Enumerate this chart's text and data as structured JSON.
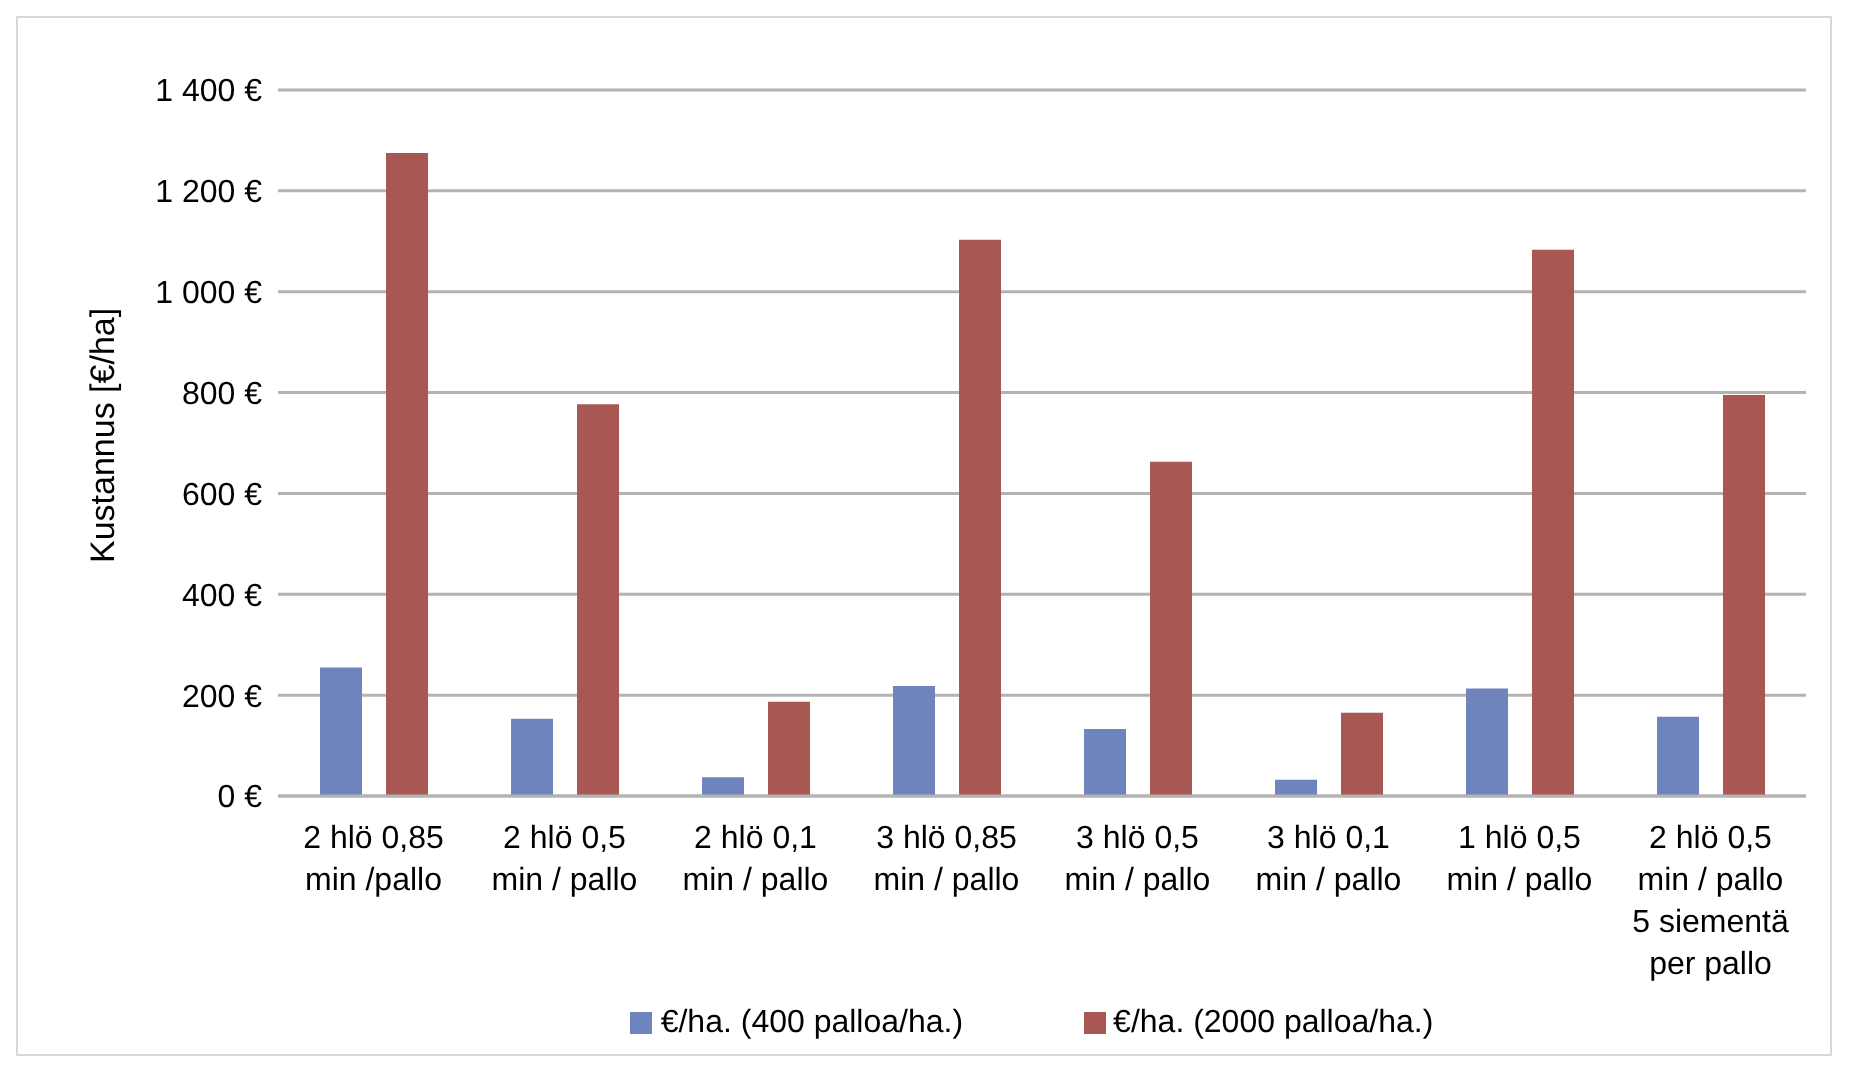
{
  "chart_data": {
    "type": "bar",
    "ylabel": "Kustannus [€/ha]",
    "categories": [
      "2 hlö 0,85 min /pallo",
      "2 hlö 0,5 min / pallo",
      "2 hlö 0,1 min / pallo",
      "3 hlö 0,85 min / pallo",
      "3 hlö 0,5 min / pallo",
      "3 hlö 0,1 min / pallo",
      "1 hlö 0,5 min / pallo",
      "2 hlö 0,5 min / pallo 5 siementä per pallo"
    ],
    "series": [
      {
        "name": "€/ha. (400 palloa/ha.)",
        "color": "#6f84bd",
        "values": [
          255,
          153,
          37,
          218,
          133,
          32,
          213,
          157
        ]
      },
      {
        "name": "€/ha. (2000 palloa/ha.)",
        "color": "#a85752",
        "values": [
          1275,
          777,
          187,
          1103,
          663,
          165,
          1083,
          795
        ]
      }
    ],
    "ylim": [
      0,
      1400
    ],
    "yticks": [
      {
        "value": 0,
        "label": "0 €"
      },
      {
        "value": 200,
        "label": "200 €"
      },
      {
        "value": 400,
        "label": "400 €"
      },
      {
        "value": 600,
        "label": "600 €"
      },
      {
        "value": 800,
        "label": "800 €"
      },
      {
        "value": 1000,
        "label": "1 000 €"
      },
      {
        "value": 1200,
        "label": "1 200 €"
      },
      {
        "value": 1400,
        "label": "1 400 €"
      }
    ],
    "grid": "y",
    "legend": "bottom"
  }
}
